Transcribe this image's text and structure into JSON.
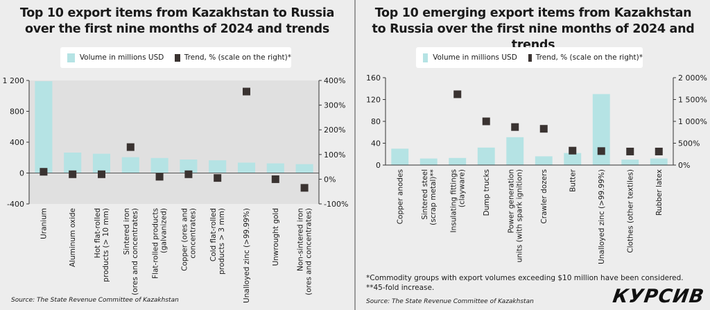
{
  "left": {
    "title_line1": "Top 10 export items from Kazakhstan to Russia",
    "title_line2": "over the first nine months of 2024 and trends",
    "legend": {
      "bar_label": "Volume in millions USD",
      "marker_label": "Trend, % (scale on the right)*"
    },
    "source": "Source: The State Revenue Committee of Kazakhstan"
  },
  "right": {
    "title_line1": "Top 10 emerging export items from Kazakhstan",
    "title_line2": "to Russia over the first nine months of 2024 and trends",
    "legend": {
      "bar_label": "Volume in millions USD",
      "marker_label": "Trend, % (scale on the right)*"
    },
    "source": "Source: The State Revenue Committee of Kazakhstan",
    "note1": "*Commodity groups with export volumes exceeding $10 million have been considered.",
    "note2": "**45-fold increase."
  },
  "logo": "КУРСИВ",
  "colors": {
    "bar": "#b5e3e4",
    "marker": "#3a3331",
    "plot_bg": "#e0e0e0",
    "page_bg": "#ededed"
  },
  "chart_data": [
    {
      "type": "bar",
      "title": "Top 10 export items from Kazakhstan to Russia over the first nine months of 2024 and trends",
      "categories": [
        [
          "Uranium"
        ],
        [
          "Aluminum oxide"
        ],
        [
          "Hot flat-rolled",
          "products (> 10 mm)"
        ],
        [
          "Sintered iron",
          "(ores and concentrates)"
        ],
        [
          "Flat-rolled products",
          "(galvanized)"
        ],
        [
          "Copper (ores and",
          "concentrates)"
        ],
        [
          "Cold flat-rolled",
          "products > 3 mm)"
        ],
        [
          "Unalloyed zinc (>99.99%)"
        ],
        [
          "Unwrought gold"
        ],
        [
          "Non-sintered iron",
          "(ores and concentrates)"
        ]
      ],
      "series": [
        {
          "name": "Volume in millions USD",
          "axis": "left",
          "values": [
            1190,
            265,
            250,
            205,
            195,
            175,
            165,
            135,
            125,
            115
          ]
        },
        {
          "name": "Trend, % (scale on the right)*",
          "axis": "right",
          "values": [
            30,
            20,
            20,
            130,
            10,
            20,
            5,
            355,
            0,
            -35
          ]
        }
      ],
      "y_left": {
        "ylim": [
          -400,
          1200
        ],
        "ticks": [
          -400,
          0,
          400,
          800,
          1200
        ],
        "tick_labels": [
          "-400",
          "0",
          "400",
          "800",
          "1 200"
        ]
      },
      "y_right": {
        "ylim": [
          -100,
          400
        ],
        "ticks": [
          -100,
          0,
          100,
          200,
          300,
          400
        ],
        "tick_labels": [
          "-100%",
          "0%",
          "100%",
          "200%",
          "300%",
          "400%"
        ]
      },
      "legend_position": "top-center",
      "grid": false
    },
    {
      "type": "bar",
      "title": "Top 10 emerging export items from Kazakhstan to Russia over the first nine months of 2024 and trends",
      "categories": [
        [
          "Copper anodes"
        ],
        [
          "Sintered steel",
          "(scrap metal)**"
        ],
        [
          "Insulating fittings",
          "(clayware)"
        ],
        [
          "Dump trucks"
        ],
        [
          "Power generation",
          "units (with spark ignition)"
        ],
        [
          "Crawler dozers"
        ],
        [
          "Butter"
        ],
        [
          "Unalloyed zinc (>99.99%)"
        ],
        [
          "Clothes (other textiles)"
        ],
        [
          "Rubber latex"
        ]
      ],
      "series": [
        {
          "name": "Volume in millions USD",
          "axis": "left",
          "values": [
            30,
            12,
            13,
            32,
            51,
            16,
            22,
            130,
            10,
            12
          ]
        },
        {
          "name": "Trend, % (scale on the right)*",
          "axis": "right",
          "values": null,
          "values_right_pct": [
            null,
            null,
            1620,
            1000,
            870,
            830,
            330,
            320,
            310,
            310
          ]
        }
      ],
      "y_left": {
        "ylim": [
          0,
          160
        ],
        "ticks": [
          0,
          40,
          80,
          120,
          160
        ],
        "tick_labels": [
          "0",
          "40",
          "80",
          "120",
          "160"
        ]
      },
      "y_right": {
        "ylim": [
          0,
          2000
        ],
        "ticks": [
          0,
          500,
          1000,
          1500,
          2000
        ],
        "tick_labels": [
          "0%",
          "500%",
          "1 000%",
          "1 500%",
          "2 000%"
        ]
      },
      "legend_position": "top-center",
      "grid": false
    }
  ]
}
